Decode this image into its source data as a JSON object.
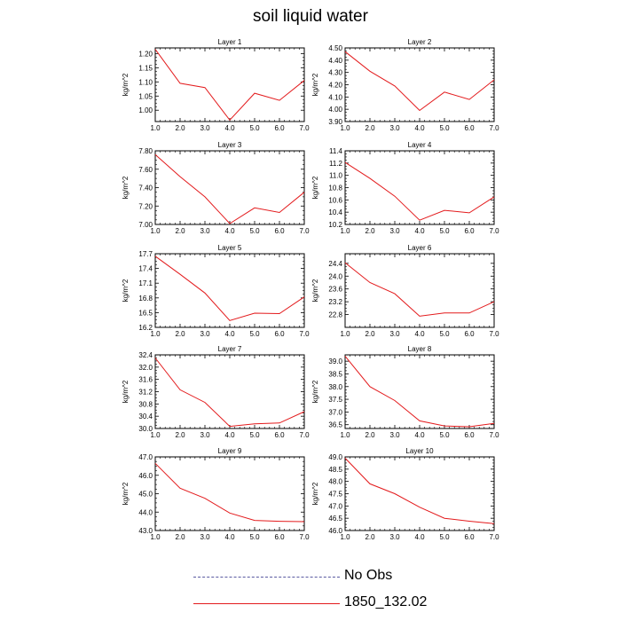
{
  "title": "soil liquid water",
  "legend": [
    {
      "label": "No Obs",
      "color": "#5a5aa0",
      "style": "dashed"
    },
    {
      "label": "1850_132.02",
      "color": "#e31a1c",
      "style": "solid"
    }
  ],
  "chart_data": [
    {
      "type": "line",
      "title": "Layer 1",
      "ylabel": "kg/m^2",
      "x": [
        1,
        2,
        3,
        4,
        5,
        6,
        7
      ],
      "xticks": [
        "1.0",
        "2.0",
        "3.0",
        "4.0",
        "5.0",
        "6.0",
        "7.0"
      ],
      "xlim": [
        1,
        7
      ],
      "yticks": [
        "1.00",
        "1.05",
        "1.10",
        "1.15",
        "1.20"
      ],
      "ytick_values": [
        1.0,
        1.05,
        1.1,
        1.15,
        1.2
      ],
      "ylim": [
        0.96,
        1.22
      ],
      "series": [
        {
          "name": "1850_132.02",
          "color": "#e31a1c",
          "values": [
            1.215,
            1.095,
            1.08,
            0.965,
            1.06,
            1.035,
            1.105
          ]
        }
      ]
    },
    {
      "type": "line",
      "title": "Layer 2",
      "ylabel": "kg/m^2",
      "x": [
        1,
        2,
        3,
        4,
        5,
        6,
        7
      ],
      "xticks": [
        "1.0",
        "2.0",
        "3.0",
        "4.0",
        "5.0",
        "6.0",
        "7.0"
      ],
      "xlim": [
        1,
        7
      ],
      "yticks": [
        "3.90",
        "4.00",
        "4.10",
        "4.20",
        "4.30",
        "4.40",
        "4.50"
      ],
      "ytick_values": [
        3.9,
        4.0,
        4.1,
        4.2,
        4.3,
        4.4,
        4.5
      ],
      "ylim": [
        3.9,
        4.5
      ],
      "series": [
        {
          "name": "1850_132.02",
          "color": "#e31a1c",
          "values": [
            4.47,
            4.31,
            4.19,
            3.99,
            4.14,
            4.08,
            4.24
          ]
        }
      ]
    },
    {
      "type": "line",
      "title": "Layer 3",
      "ylabel": "kg/m^2",
      "x": [
        1,
        2,
        3,
        4,
        5,
        6,
        7
      ],
      "xticks": [
        "1.0",
        "2.0",
        "3.0",
        "4.0",
        "5.0",
        "6.0",
        "7.0"
      ],
      "xlim": [
        1,
        7
      ],
      "yticks": [
        "7.00",
        "7.20",
        "7.40",
        "7.60",
        "7.80"
      ],
      "ytick_values": [
        7.0,
        7.2,
        7.4,
        7.6,
        7.8
      ],
      "ylim": [
        7.0,
        7.8
      ],
      "series": [
        {
          "name": "1850_132.02",
          "color": "#e31a1c",
          "values": [
            7.76,
            7.52,
            7.3,
            7.01,
            7.18,
            7.13,
            7.35
          ]
        }
      ]
    },
    {
      "type": "line",
      "title": "Layer 4",
      "ylabel": "kg/m^2",
      "x": [
        1,
        2,
        3,
        4,
        5,
        6,
        7
      ],
      "xticks": [
        "1.0",
        "2.0",
        "3.0",
        "4.0",
        "5.0",
        "6.0",
        "7.0"
      ],
      "xlim": [
        1,
        7
      ],
      "yticks": [
        "10.2",
        "10.4",
        "10.6",
        "10.8",
        "11.0",
        "11.2",
        "11.4"
      ],
      "ytick_values": [
        10.2,
        10.4,
        10.6,
        10.8,
        11.0,
        11.2,
        11.4
      ],
      "ylim": [
        10.2,
        11.4
      ],
      "series": [
        {
          "name": "1850_132.02",
          "color": "#e31a1c",
          "values": [
            11.21,
            10.95,
            10.66,
            10.27,
            10.43,
            10.39,
            10.65
          ]
        }
      ]
    },
    {
      "type": "line",
      "title": "Layer 5",
      "ylabel": "kg/m^2",
      "x": [
        1,
        2,
        3,
        4,
        5,
        6,
        7
      ],
      "xticks": [
        "1.0",
        "2.0",
        "3.0",
        "4.0",
        "5.0",
        "6.0",
        "7.0"
      ],
      "xlim": [
        1,
        7
      ],
      "yticks": [
        "16.2",
        "16.5",
        "16.8",
        "17.1",
        "17.4",
        "17.7"
      ],
      "ytick_values": [
        16.2,
        16.5,
        16.8,
        17.1,
        17.4,
        17.7
      ],
      "ylim": [
        16.2,
        17.7
      ],
      "series": [
        {
          "name": "1850_132.02",
          "color": "#e31a1c",
          "values": [
            17.65,
            17.28,
            16.9,
            16.34,
            16.49,
            16.48,
            16.82
          ]
        }
      ]
    },
    {
      "type": "line",
      "title": "Layer 6",
      "ylabel": "kg/m^2",
      "x": [
        1,
        2,
        3,
        4,
        5,
        6,
        7
      ],
      "xticks": [
        "1.0",
        "2.0",
        "3.0",
        "4.0",
        "5.0",
        "6.0",
        "7.0"
      ],
      "xlim": [
        1,
        7
      ],
      "yticks": [
        "22.8",
        "23.2",
        "23.6",
        "24.0",
        "24.4"
      ],
      "ytick_values": [
        22.8,
        23.2,
        23.6,
        24.0,
        24.4
      ],
      "ylim": [
        22.4,
        24.7
      ],
      "series": [
        {
          "name": "1850_132.02",
          "color": "#e31a1c",
          "values": [
            24.42,
            23.8,
            23.45,
            22.75,
            22.85,
            22.85,
            23.2
          ]
        }
      ]
    },
    {
      "type": "line",
      "title": "Layer 7",
      "ylabel": "kg/m^2",
      "x": [
        1,
        2,
        3,
        4,
        5,
        6,
        7
      ],
      "xticks": [
        "1.0",
        "2.0",
        "3.0",
        "4.0",
        "5.0",
        "6.0",
        "7.0"
      ],
      "xlim": [
        1,
        7
      ],
      "yticks": [
        "30.0",
        "30.4",
        "30.8",
        "31.2",
        "31.6",
        "32.0",
        "32.4"
      ],
      "ytick_values": [
        30.0,
        30.4,
        30.8,
        31.2,
        31.6,
        32.0,
        32.4
      ],
      "ylim": [
        30.0,
        32.4
      ],
      "series": [
        {
          "name": "1850_132.02",
          "color": "#e31a1c",
          "values": [
            32.3,
            31.26,
            30.85,
            30.07,
            30.15,
            30.18,
            30.55
          ]
        }
      ]
    },
    {
      "type": "line",
      "title": "Layer 8",
      "ylabel": "kg/m^2",
      "x": [
        1,
        2,
        3,
        4,
        5,
        6,
        7
      ],
      "xticks": [
        "1.0",
        "2.0",
        "3.0",
        "4.0",
        "5.0",
        "6.0",
        "7.0"
      ],
      "xlim": [
        1,
        7
      ],
      "yticks": [
        "36.5",
        "37.0",
        "37.5",
        "38.0",
        "38.5",
        "39.0"
      ],
      "ytick_values": [
        36.5,
        37.0,
        37.5,
        38.0,
        38.5,
        39.0
      ],
      "ylim": [
        36.35,
        39.25
      ],
      "series": [
        {
          "name": "1850_132.02",
          "color": "#e31a1c",
          "values": [
            39.2,
            38.0,
            37.45,
            36.65,
            36.45,
            36.42,
            36.55
          ]
        }
      ]
    },
    {
      "type": "line",
      "title": "Layer 9",
      "ylabel": "kg/m^2",
      "x": [
        1,
        2,
        3,
        4,
        5,
        6,
        7
      ],
      "xticks": [
        "1.0",
        "2.0",
        "3.0",
        "4.0",
        "5.0",
        "6.0",
        "7.0"
      ],
      "xlim": [
        1,
        7
      ],
      "yticks": [
        "43.0",
        "44.0",
        "45.0",
        "46.0",
        "47.0"
      ],
      "ytick_values": [
        43.0,
        44.0,
        45.0,
        46.0,
        47.0
      ],
      "ylim": [
        43.0,
        47.0
      ],
      "series": [
        {
          "name": "1850_132.02",
          "color": "#e31a1c",
          "values": [
            46.65,
            45.3,
            44.75,
            43.95,
            43.55,
            43.5,
            43.48
          ]
        }
      ]
    },
    {
      "type": "line",
      "title": "Layer 10",
      "ylabel": "kg/m^2",
      "x": [
        1,
        2,
        3,
        4,
        5,
        6,
        7
      ],
      "xticks": [
        "1.0",
        "2.0",
        "3.0",
        "4.0",
        "5.0",
        "6.0",
        "7.0"
      ],
      "xlim": [
        1,
        7
      ],
      "yticks": [
        "46.0",
        "46.5",
        "47.0",
        "47.5",
        "48.0",
        "48.5",
        "49.0"
      ],
      "ytick_values": [
        46.0,
        46.5,
        47.0,
        47.5,
        48.0,
        48.5,
        49.0
      ],
      "ylim": [
        46.0,
        49.0
      ],
      "series": [
        {
          "name": "1850_132.02",
          "color": "#e31a1c",
          "values": [
            48.95,
            47.9,
            47.5,
            46.95,
            46.5,
            46.38,
            46.28
          ]
        }
      ]
    }
  ]
}
